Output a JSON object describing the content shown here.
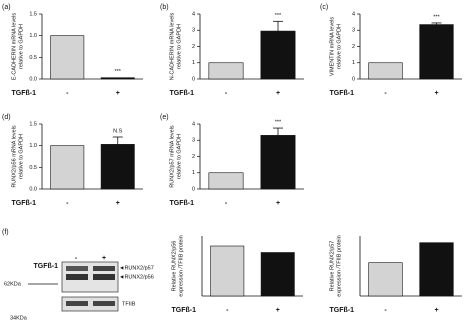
{
  "chart_data": [
    {
      "type": "bar",
      "panel": "(a)",
      "ylabel": [
        "E-CADHERIN mRNA levels",
        "relative to GAPDH"
      ],
      "xlabel": "TGFß-1",
      "categories": [
        "-",
        "+"
      ],
      "values": [
        1.0,
        0.03
      ],
      "colors": [
        "#d3d3d3",
        "#111111"
      ],
      "ylim": [
        0,
        1.5
      ],
      "yticks": [
        {
          "value": 0,
          "label": "0.0"
        },
        {
          "value": 0.5,
          "label": "0.5"
        },
        {
          "value": 1,
          "label": "1.0"
        },
        {
          "value": 1.5,
          "label": "1.5"
        }
      ],
      "annotation": "***"
    },
    {
      "type": "bar",
      "panel": "(b)",
      "ylabel": [
        "N-CADHERIN mRNA levels",
        "relative to GAPDH"
      ],
      "xlabel": "TGFß-1",
      "categories": [
        "-",
        "+"
      ],
      "values": [
        1,
        2.95
      ],
      "errors": [
        null,
        0.6
      ],
      "colors": [
        "#d3d3d3",
        "#111111"
      ],
      "ylim": [
        0,
        4
      ],
      "yticks": [
        0,
        1,
        2,
        3,
        4
      ],
      "annotation": "***"
    },
    {
      "type": "bar",
      "panel": "(c)",
      "ylabel": [
        "VIMENTIN mRNA levels",
        "relative to GAPDH"
      ],
      "xlabel": "TGFß-1",
      "categories": [
        "-",
        "+"
      ],
      "values": [
        1,
        3.35
      ],
      "errors": [
        null,
        0.1
      ],
      "colors": [
        "#d3d3d3",
        "#111111"
      ],
      "ylim": [
        0,
        4
      ],
      "yticks": [
        0,
        1,
        2,
        3,
        4
      ],
      "annotation": "***"
    },
    {
      "type": "bar",
      "panel": "(d)",
      "ylabel": [
        "RUNX2/p56 mRNA levels",
        "relative to GAPDH"
      ],
      "xlabel": "TGFß-1",
      "categories": [
        "-",
        "+"
      ],
      "values": [
        1.0,
        1.03
      ],
      "errors": [
        null,
        0.17
      ],
      "colors": [
        "#d3d3d3",
        "#111111"
      ],
      "ylim": [
        0,
        1.5
      ],
      "yticks": [
        {
          "value": 0,
          "label": "0.0"
        },
        {
          "value": 0.5,
          "label": "0.5"
        },
        {
          "value": 1,
          "label": "1.0"
        },
        {
          "value": 1.5,
          "label": "1.5"
        }
      ],
      "annotation": "N.S"
    },
    {
      "type": "bar",
      "panel": "(e)",
      "ylabel": [
        "RUNX2/p57 mRNA levels",
        "relative to GAPDH"
      ],
      "xlabel": "TGFß-1",
      "categories": [
        "-",
        "+"
      ],
      "values": [
        1,
        3.3
      ],
      "errors": [
        null,
        0.45
      ],
      "colors": [
        "#d3d3d3",
        "#111111"
      ],
      "ylim": [
        0,
        4
      ],
      "yticks": [
        0,
        1,
        2,
        3,
        4
      ],
      "annotation": "***"
    },
    {
      "type": "bar",
      "ylabel": [
        "Relative RUNX2/p56",
        "expression /TFIIB protein"
      ],
      "xlabel": "TGFß-1",
      "categories": [
        "-",
        "+"
      ],
      "values": [
        1,
        0.87
      ],
      "colors": [
        "#d3d3d3",
        "#111111"
      ],
      "ylim": [
        0,
        1.2
      ]
    },
    {
      "type": "bar",
      "ylabel": [
        "Relative RUNX2/p57",
        "expression /TFIIB protein"
      ],
      "xlabel": "TGFß-1",
      "categories": [
        "-",
        "+"
      ],
      "values": [
        1,
        1.6
      ],
      "colors": [
        "#d3d3d3",
        "#111111"
      ],
      "ylim": [
        0,
        1.8
      ]
    }
  ],
  "blot": {
    "panel": "(f)",
    "treatment": "TGFß-1",
    "lanes": [
      "-",
      "+"
    ],
    "bands": [
      "◄RUNX2/p57",
      "◄RUNX2/p56"
    ],
    "marker_62": "62KDa",
    "control": "TFIIB",
    "marker_34": "34KDa"
  }
}
